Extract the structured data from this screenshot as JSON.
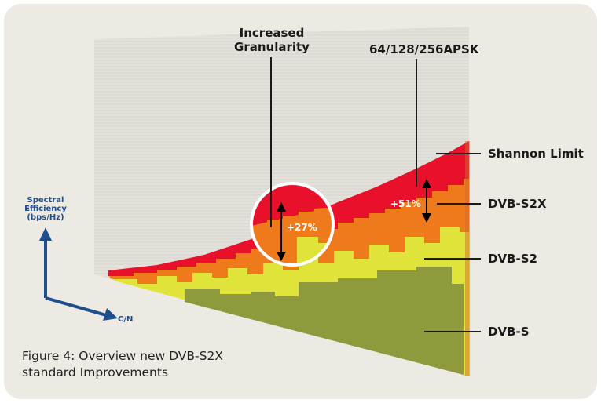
{
  "labels": {
    "increased_granularity": [
      "Increased",
      "Granularity"
    ],
    "apsk": "64/128/256APSK",
    "shannon_limit": "Shannon Limit",
    "dvb_s2x": "DVB-S2X",
    "dvb_s2": "DVB-S2",
    "dvb_s": "DVB-S",
    "gain_27": "+27%",
    "gain_51": "+51%"
  },
  "axes": {
    "y_label": [
      "Spectral",
      "Efficiency",
      "(bps/Hz)"
    ],
    "x_label": "C/N"
  },
  "caption": [
    "Figure 4: Overview new DVB-S2X",
    "standard Improvements"
  ],
  "colors": {
    "background": "#eceae3",
    "shannon": "#e8102a",
    "dvb_s2x": "#ef7a1c",
    "dvb_s2": "#e0e43a",
    "dvb_s": "#8f9a3c",
    "axis": "#1f4e8c"
  }
}
